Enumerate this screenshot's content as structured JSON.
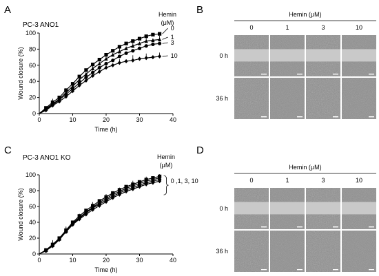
{
  "panels": {
    "A": {
      "letter": "A",
      "title": "PC-3 ANO1"
    },
    "B": {
      "letter": "B"
    },
    "C": {
      "letter": "C",
      "title": "PC-3 ANO1 KO"
    },
    "D": {
      "letter": "D"
    }
  },
  "hemin_legend": {
    "line1": "Hemin",
    "line2": "(μM)"
  },
  "micrograph": {
    "header": "Hemin (μM)",
    "columns": [
      "0",
      "1",
      "3",
      "10"
    ],
    "rows": [
      "0 h",
      "36 h"
    ]
  },
  "chart_data": [
    {
      "type": "line",
      "panel": "A",
      "xlabel": "Time (h)",
      "ylabel": "Wound closure (%)",
      "xlim": [
        0,
        40
      ],
      "ylim": [
        0,
        100
      ],
      "xticks": [
        0,
        10,
        20,
        30,
        40
      ],
      "yticks": [
        0,
        20,
        40,
        60,
        80,
        100
      ],
      "legend_labels": [
        "0",
        "1",
        "3",
        "10"
      ],
      "x": [
        0,
        2,
        4,
        6,
        8,
        10,
        12,
        14,
        16,
        18,
        20,
        22,
        24,
        26,
        28,
        30,
        32,
        34,
        36
      ],
      "series": [
        {
          "name": "0",
          "marker": "square",
          "values": [
            0,
            7,
            14,
            20,
            29,
            37,
            46,
            54,
            61,
            67,
            73,
            78,
            83,
            87,
            90,
            93,
            96,
            98,
            99
          ]
        },
        {
          "name": "1",
          "marker": "triangle",
          "values": [
            0,
            6,
            12,
            18,
            26,
            34,
            42,
            49,
            56,
            62,
            68,
            73,
            77,
            81,
            84,
            87,
            90,
            91,
            92
          ]
        },
        {
          "name": "3",
          "marker": "circle",
          "values": [
            0,
            5,
            11,
            17,
            24,
            31,
            38,
            45,
            51,
            57,
            62,
            66,
            71,
            75,
            78,
            81,
            84,
            86,
            87
          ]
        },
        {
          "name": "10",
          "marker": "diamond",
          "values": [
            0,
            4,
            10,
            15,
            21,
            28,
            35,
            41,
            47,
            52,
            57,
            60,
            63,
            65,
            66,
            68,
            69,
            70,
            71
          ]
        }
      ]
    },
    {
      "type": "line",
      "panel": "C",
      "xlabel": "Time (h)",
      "ylabel": "Wound closure (%)",
      "xlim": [
        0,
        40
      ],
      "ylim": [
        0,
        100
      ],
      "xticks": [
        0,
        10,
        20,
        30,
        40
      ],
      "yticks": [
        0,
        20,
        40,
        60,
        80,
        100
      ],
      "legend_labels": [
        "0 ,1, 3, 10"
      ],
      "x": [
        0,
        2,
        4,
        6,
        8,
        10,
        12,
        14,
        16,
        18,
        20,
        22,
        24,
        26,
        28,
        30,
        32,
        34,
        36
      ],
      "series": [
        {
          "marker": "square",
          "values": [
            0,
            5,
            12,
            20,
            30,
            40,
            48,
            55,
            61,
            67,
            72,
            77,
            81,
            85,
            88,
            91,
            94,
            96,
            98
          ]
        },
        {
          "marker": "triangle",
          "values": [
            0,
            5,
            11,
            19,
            29,
            39,
            46,
            53,
            59,
            65,
            70,
            75,
            79,
            83,
            86,
            89,
            92,
            94,
            96
          ]
        },
        {
          "marker": "circle",
          "values": [
            0,
            4,
            11,
            19,
            28,
            38,
            45,
            52,
            58,
            63,
            68,
            73,
            77,
            81,
            84,
            87,
            90,
            92,
            94
          ]
        },
        {
          "marker": "diamond",
          "values": [
            0,
            4,
            10,
            18,
            28,
            37,
            44,
            50,
            56,
            61,
            66,
            71,
            75,
            79,
            82,
            85,
            88,
            90,
            92
          ]
        }
      ]
    }
  ]
}
